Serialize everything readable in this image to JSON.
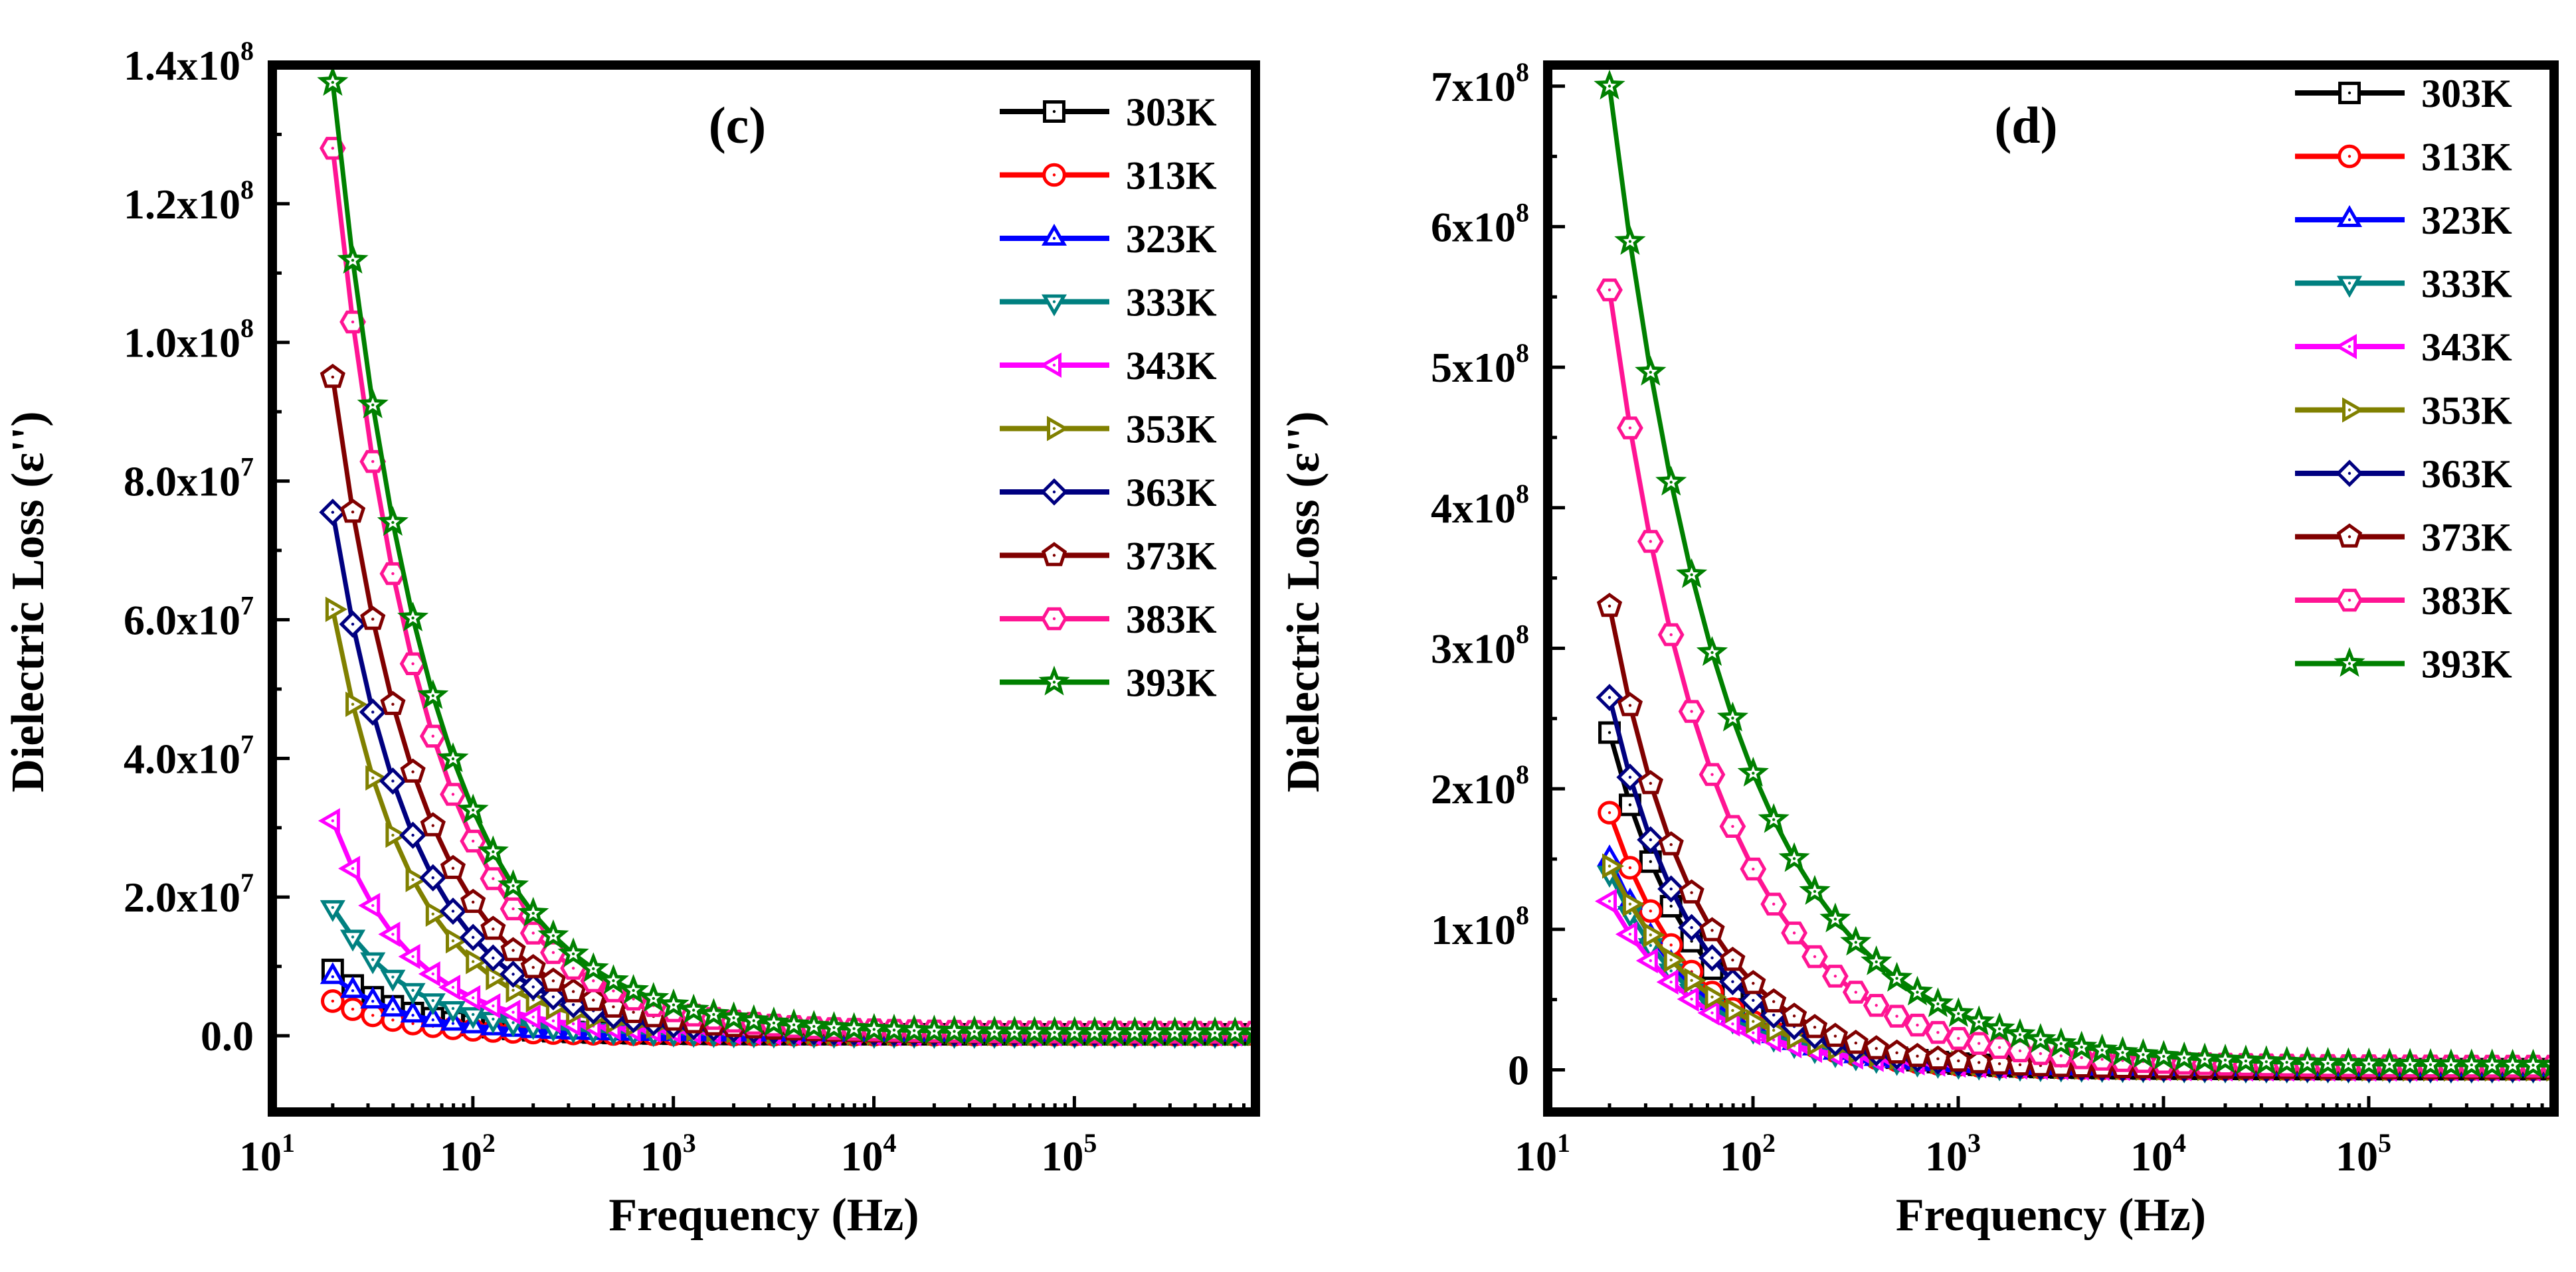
{
  "chart_data": [
    {
      "type": "line",
      "panel_label": "(c)",
      "xlabel": "Frequency (Hz)",
      "ylabel": "Dielectric Loss (ε'')",
      "x_scale": "log",
      "xlim": [
        10,
        800000
      ],
      "ylim": [
        -11000000,
        140000000
      ],
      "x_ticks": [
        {
          "value": 10,
          "base": "10",
          "exp": "1"
        },
        {
          "value": 100,
          "base": "10",
          "exp": "2"
        },
        {
          "value": 1000,
          "base": "10",
          "exp": "3"
        },
        {
          "value": 10000,
          "base": "10",
          "exp": "4"
        },
        {
          "value": 100000,
          "base": "10",
          "exp": "5"
        }
      ],
      "y_ticks": [
        {
          "value": 0,
          "mant": "0.0",
          "exp": ""
        },
        {
          "value": 20000000,
          "mant": "2.0x10",
          "exp": "7"
        },
        {
          "value": 40000000,
          "mant": "4.0x10",
          "exp": "7"
        },
        {
          "value": 60000000,
          "mant": "6.0x10",
          "exp": "7"
        },
        {
          "value": 80000000,
          "mant": "8.0x10",
          "exp": "7"
        },
        {
          "value": 100000000,
          "mant": "1.0x10",
          "exp": "8"
        },
        {
          "value": 120000000,
          "mant": "1.2x10",
          "exp": "8"
        },
        {
          "value": 140000000,
          "mant": "1.4x10",
          "exp": "8"
        }
      ],
      "grid": false,
      "legend_position": "top-right",
      "series": [
        {
          "name": "303K",
          "color": "#000000",
          "marker": "square",
          "peak": 9500000,
          "decay": 1.2,
          "floor": 200000
        },
        {
          "name": "313K",
          "color": "#ff0000",
          "marker": "circle",
          "peak": 5000000,
          "decay": 1.2,
          "floor": 150000
        },
        {
          "name": "323K",
          "color": "#0000ff",
          "marker": "triangle-up",
          "peak": 8500000,
          "decay": 1.2,
          "floor": 200000
        },
        {
          "name": "333K",
          "color": "#008080",
          "marker": "triangle-down",
          "peak": 18500000,
          "decay": 1.15,
          "floor": 200000
        },
        {
          "name": "343K",
          "color": "#ff00ff",
          "marker": "triangle-left",
          "peak": 31000000,
          "decay": 1.1,
          "floor": 250000
        },
        {
          "name": "353K",
          "color": "#808000",
          "marker": "triangle-right",
          "peak": 61500000,
          "decay": 1.1,
          "floor": 300000
        },
        {
          "name": "363K",
          "color": "#000080",
          "marker": "diamond",
          "peak": 75500000,
          "decay": 1.05,
          "floor": 350000
        },
        {
          "name": "373K",
          "color": "#800000",
          "marker": "pentagon",
          "peak": 95000000,
          "decay": 1.0,
          "floor": 400000
        },
        {
          "name": "383K",
          "color": "#ff1493",
          "marker": "hexagon",
          "peak": 128000000,
          "decay": 0.95,
          "floor": 500000
        },
        {
          "name": "393K",
          "color": "#008000",
          "marker": "star",
          "peak": 137500000,
          "decay": 0.9,
          "floor": 400000
        }
      ]
    },
    {
      "type": "line",
      "panel_label": "(d)",
      "xlabel": "Frequency (Hz)",
      "ylabel": "Dielectric Loss (ε'')",
      "x_scale": "log",
      "xlim": [
        10,
        800000
      ],
      "ylim": [
        -30000000,
        715000000
      ],
      "x_ticks": [
        {
          "value": 10,
          "base": "10",
          "exp": "1"
        },
        {
          "value": 100,
          "base": "10",
          "exp": "2"
        },
        {
          "value": 1000,
          "base": "10",
          "exp": "3"
        },
        {
          "value": 10000,
          "base": "10",
          "exp": "4"
        },
        {
          "value": 100000,
          "base": "10",
          "exp": "5"
        }
      ],
      "y_ticks": [
        {
          "value": 0,
          "mant": "0",
          "exp": ""
        },
        {
          "value": 100000000,
          "mant": "1x10",
          "exp": "8"
        },
        {
          "value": 200000000,
          "mant": "2x10",
          "exp": "8"
        },
        {
          "value": 300000000,
          "mant": "3x10",
          "exp": "8"
        },
        {
          "value": 400000000,
          "mant": "4x10",
          "exp": "8"
        },
        {
          "value": 500000000,
          "mant": "5x10",
          "exp": "8"
        },
        {
          "value": 600000000,
          "mant": "6x10",
          "exp": "8"
        },
        {
          "value": 700000000,
          "mant": "7x10",
          "exp": "8"
        }
      ],
      "grid": false,
      "legend_position": "top-right",
      "series": [
        {
          "name": "303K",
          "color": "#000000",
          "marker": "square",
          "peak": 240000000,
          "decay": 1.05,
          "floor": 500000
        },
        {
          "name": "313K",
          "color": "#ff0000",
          "marker": "circle",
          "peak": 183000000,
          "decay": 1.05,
          "floor": 500000
        },
        {
          "name": "323K",
          "color": "#0000ff",
          "marker": "triangle-up",
          "peak": 150000000,
          "decay": 1.0,
          "floor": 500000
        },
        {
          "name": "333K",
          "color": "#008080",
          "marker": "triangle-down",
          "peak": 140000000,
          "decay": 1.0,
          "floor": 500000
        },
        {
          "name": "343K",
          "color": "#ff00ff",
          "marker": "triangle-left",
          "peak": 120000000,
          "decay": 0.95,
          "floor": 500000
        },
        {
          "name": "353K",
          "color": "#808000",
          "marker": "triangle-right",
          "peak": 145000000,
          "decay": 0.9,
          "floor": 600000
        },
        {
          "name": "363K",
          "color": "#000080",
          "marker": "diamond",
          "peak": 265000000,
          "decay": 1.05,
          "floor": 800000
        },
        {
          "name": "373K",
          "color": "#800000",
          "marker": "pentagon",
          "peak": 330000000,
          "decay": 1.05,
          "floor": 1000000
        },
        {
          "name": "383K",
          "color": "#ff1493",
          "marker": "hexagon",
          "peak": 555000000,
          "decay": 0.85,
          "floor": 2500000
        },
        {
          "name": "393K",
          "color": "#008000",
          "marker": "star",
          "peak": 700000000,
          "decay": 0.75,
          "floor": 3000000
        }
      ]
    }
  ]
}
